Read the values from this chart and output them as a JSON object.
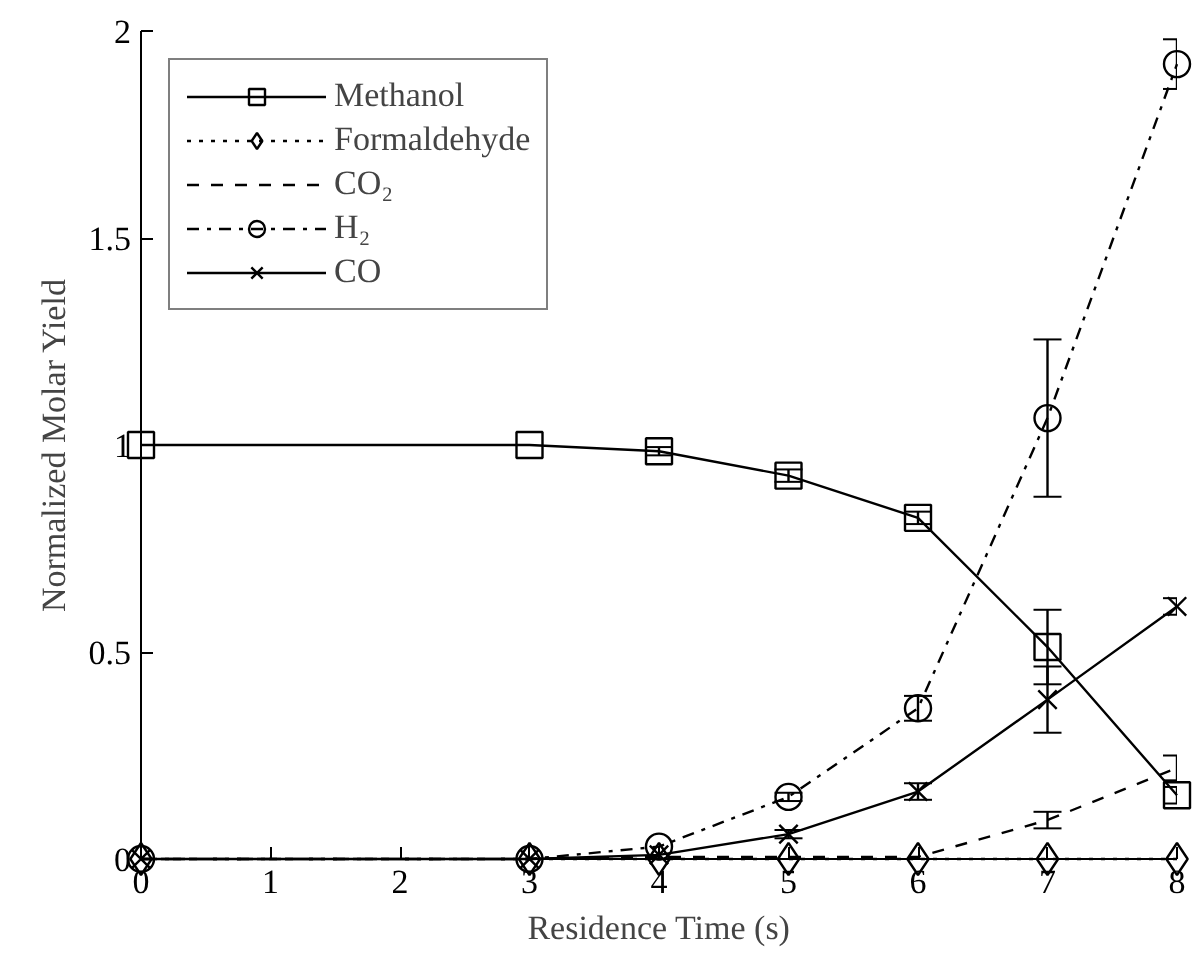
{
  "chart_data": {
    "type": "line",
    "xlabel": "Residence Time (s)",
    "ylabel": "Normalized Molar Yield",
    "x": [
      0,
      3,
      4,
      5,
      6,
      7,
      8
    ],
    "xlim": [
      0,
      8
    ],
    "xticks": [
      0,
      1,
      2,
      3,
      4,
      5,
      6,
      7,
      8
    ],
    "ylim": [
      0,
      2
    ],
    "yticks": [
      0,
      0.5,
      1,
      1.5,
      2
    ],
    "grid": false,
    "legend": "top left",
    "series": [
      {
        "name": "Methanol",
        "color": "#000000",
        "marker": "square",
        "line_style": "solid",
        "values": [
          1.0,
          1.0,
          0.985,
          0.926,
          0.824,
          0.512,
          0.154
        ],
        "errors": [
          null,
          null,
          0.01,
          0.015,
          0.015,
          0.09,
          0.02
        ]
      },
      {
        "name": "Formaldehyde",
        "color": "#000000",
        "marker": "diamond",
        "line_style": "dotted",
        "values": [
          0,
          0,
          0,
          0,
          0,
          0,
          0
        ],
        "errors": [
          null,
          null,
          null,
          null,
          null,
          null,
          null
        ]
      },
      {
        "name": "CO₂",
        "color": "#000000",
        "line_style": "dashed",
        "values": [
          0,
          0,
          0.005,
          0.005,
          0.005,
          0.094,
          0.22
        ],
        "errors": [
          null,
          null,
          null,
          null,
          null,
          0.02,
          0.03
        ]
      },
      {
        "name": "H₂",
        "color": "#000000",
        "marker": "circle",
        "line_style": "dashdot",
        "values": [
          0,
          0,
          0.03,
          0.15,
          0.364,
          1.065,
          1.92
        ],
        "errors": [
          null,
          null,
          null,
          0.01,
          0.03,
          0.19,
          0.06
        ]
      },
      {
        "name": "CO",
        "color": "#000000",
        "marker": "cross",
        "line_style": "solid",
        "values": [
          0,
          0,
          0.01,
          0.06,
          0.163,
          0.385,
          0.61
        ],
        "errors": [
          null,
          null,
          null,
          0.01,
          0.02,
          0.08,
          0.02
        ]
      }
    ]
  }
}
